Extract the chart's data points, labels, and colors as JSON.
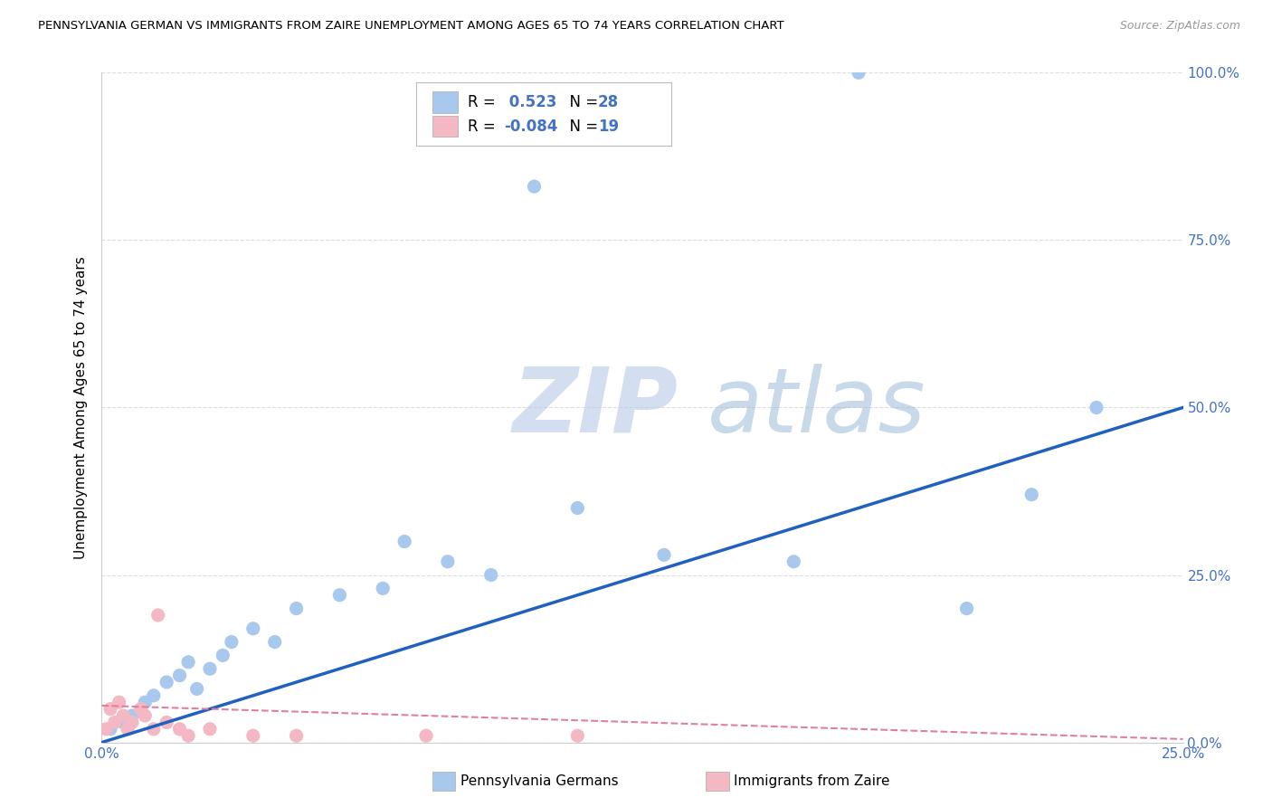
{
  "title": "PENNSYLVANIA GERMAN VS IMMIGRANTS FROM ZAIRE UNEMPLOYMENT AMONG AGES 65 TO 74 YEARS CORRELATION CHART",
  "source": "Source: ZipAtlas.com",
  "ylabel": "Unemployment Among Ages 65 to 74 years",
  "xlim": [
    0.0,
    0.25
  ],
  "ylim": [
    0.0,
    1.0
  ],
  "xticks": [
    0.0,
    0.05,
    0.1,
    0.15,
    0.2,
    0.25
  ],
  "xtick_labels": [
    "0.0%",
    "",
    "",
    "",
    "",
    "25.0%"
  ],
  "yticks": [
    0.0,
    0.25,
    0.5,
    0.75,
    1.0
  ],
  "ytick_labels": [
    "0.0%",
    "25.0%",
    "50.0%",
    "75.0%",
    "100.0%"
  ],
  "blue_color": "#A8C8EE",
  "pink_color": "#F4B8C4",
  "blue_line_color": "#2060C0",
  "pink_line_color": "#E080A0",
  "axis_tick_color": "#4472C4",
  "right_label_color": "#4472C4",
  "legend_r_color": "#4472C4",
  "watermark": "ZIPatlas",
  "watermark_zip_color": "#B8C8E8",
  "watermark_atlas_color": "#9BBBD8",
  "series1_name": "Pennsylvania Germans",
  "series2_name": "Immigrants from Zaire",
  "blue_R": 0.523,
  "blue_N": 28,
  "pink_R": -0.084,
  "pink_N": 19,
  "blue_x": [
    0.002,
    0.005,
    0.007,
    0.01,
    0.012,
    0.015,
    0.018,
    0.02,
    0.022,
    0.025,
    0.028,
    0.03,
    0.035,
    0.04,
    0.045,
    0.055,
    0.065,
    0.07,
    0.08,
    0.09,
    0.1,
    0.11,
    0.13,
    0.16,
    0.175,
    0.2,
    0.215,
    0.23
  ],
  "blue_y": [
    0.02,
    0.03,
    0.04,
    0.06,
    0.07,
    0.09,
    0.1,
    0.12,
    0.08,
    0.11,
    0.13,
    0.15,
    0.17,
    0.15,
    0.2,
    0.22,
    0.23,
    0.3,
    0.27,
    0.25,
    0.83,
    0.35,
    0.28,
    0.27,
    1.0,
    0.2,
    0.37,
    0.5
  ],
  "pink_x": [
    0.001,
    0.002,
    0.003,
    0.004,
    0.005,
    0.006,
    0.007,
    0.009,
    0.01,
    0.012,
    0.013,
    0.015,
    0.018,
    0.02,
    0.025,
    0.035,
    0.045,
    0.075,
    0.11
  ],
  "pink_y": [
    0.02,
    0.05,
    0.03,
    0.06,
    0.04,
    0.02,
    0.03,
    0.05,
    0.04,
    0.02,
    0.19,
    0.03,
    0.02,
    0.01,
    0.02,
    0.01,
    0.01,
    0.01,
    0.01
  ],
  "blue_line_x0": 0.0,
  "blue_line_y0": 0.0,
  "blue_line_x1": 0.25,
  "blue_line_y1": 0.5,
  "pink_line_x0": 0.0,
  "pink_line_y0": 0.055,
  "pink_line_x1": 0.25,
  "pink_line_y1": 0.005,
  "grid_color": "#DDDDDD",
  "spine_color": "#CCCCCC"
}
